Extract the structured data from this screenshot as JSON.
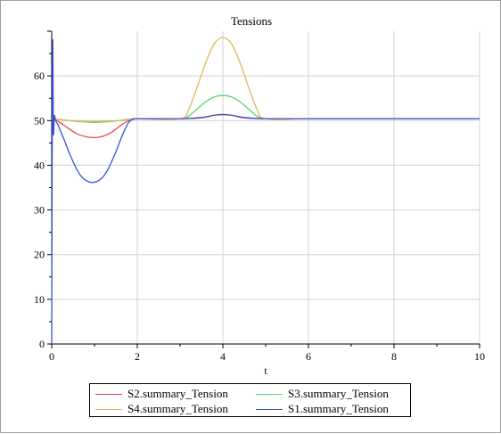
{
  "chart_data": {
    "type": "line",
    "title": "Tensions",
    "xlabel": "t",
    "ylabel": "",
    "xlim": [
      0,
      10
    ],
    "ylim": [
      0,
      70
    ],
    "xticks": [
      0,
      2,
      4,
      6,
      8,
      10
    ],
    "yticks": [
      0,
      10,
      20,
      30,
      40,
      50,
      60
    ],
    "grid": true,
    "legend_position": "bottom",
    "series": [
      {
        "name": "S2.summary_Tension",
        "color": "#e8494b",
        "x": [
          0,
          0.02,
          0.05,
          0.1,
          0.2,
          0.4,
          0.6,
          0.8,
          1.0,
          1.2,
          1.4,
          1.6,
          1.8,
          2.0,
          3.0,
          3.5,
          3.8,
          4.0,
          4.2,
          4.5,
          5.0,
          6,
          8,
          10
        ],
        "y": [
          50.3,
          50.4,
          50.2,
          50.1,
          49.5,
          48.2,
          47.0,
          46.4,
          46.2,
          46.5,
          47.4,
          48.8,
          50.0,
          50.4,
          50.4,
          50.6,
          51.2,
          51.4,
          51.2,
          50.6,
          50.4,
          50.4,
          50.4,
          50.4
        ]
      },
      {
        "name": "S3.summary_Tension",
        "color": "#5fd36a",
        "x": [
          0,
          0.05,
          0.1,
          0.3,
          0.6,
          1.0,
          1.4,
          1.8,
          2.0,
          3.0,
          3.2,
          3.4,
          3.6,
          3.8,
          4.0,
          4.2,
          4.4,
          4.6,
          4.8,
          5.0,
          6,
          8,
          10
        ],
        "y": [
          50.2,
          50.5,
          50.3,
          50.1,
          49.8,
          49.6,
          49.8,
          50.3,
          50.4,
          50.4,
          51.0,
          52.6,
          54.2,
          55.3,
          55.6,
          55.3,
          54.2,
          52.6,
          51.0,
          50.4,
          50.4,
          50.4,
          50.4
        ]
      },
      {
        "name": "S4.summary_Tension",
        "color": "#e0b45a",
        "x": [
          0,
          0.05,
          0.1,
          0.3,
          0.6,
          1.0,
          1.4,
          1.8,
          2.0,
          3.0,
          3.2,
          3.4,
          3.6,
          3.8,
          4.0,
          4.2,
          4.4,
          4.6,
          4.8,
          5.0,
          6,
          8,
          10
        ],
        "y": [
          50.2,
          50.6,
          50.3,
          50.1,
          49.9,
          49.8,
          49.9,
          50.2,
          50.4,
          50.4,
          52.5,
          57.5,
          63.0,
          67.2,
          68.6,
          67.2,
          63.0,
          57.5,
          52.5,
          50.4,
          50.4,
          50.4,
          50.4
        ]
      },
      {
        "name": "S1.summary_Tension",
        "color": "#3d4fd8",
        "x": [
          0,
          0.02,
          0.04,
          0.06,
          0.08,
          0.1,
          0.15,
          0.2,
          0.3,
          0.4,
          0.5,
          0.6,
          0.7,
          0.8,
          0.9,
          1.0,
          1.1,
          1.2,
          1.3,
          1.4,
          1.5,
          1.6,
          1.7,
          1.8,
          1.9,
          2.0,
          3.0,
          3.5,
          3.8,
          4.0,
          4.2,
          4.5,
          5.0,
          6,
          8,
          10
        ],
        "y": [
          0,
          66.5,
          47.5,
          51.0,
          50.5,
          49.8,
          49.0,
          47.8,
          45.5,
          43.0,
          40.8,
          38.8,
          37.4,
          36.6,
          36.2,
          36.2,
          36.6,
          37.4,
          38.8,
          40.8,
          43.0,
          45.5,
          47.8,
          49.6,
          50.3,
          50.4,
          50.4,
          50.7,
          51.2,
          51.3,
          51.2,
          50.7,
          50.4,
          50.4,
          50.4,
          50.4
        ]
      }
    ]
  },
  "legend": {
    "items": [
      {
        "label": "S2.summary_Tension",
        "color": "#e8494b"
      },
      {
        "label": "S3.summary_Tension",
        "color": "#5fd36a"
      },
      {
        "label": "S4.summary_Tension",
        "color": "#e0b45a"
      },
      {
        "label": "S1.summary_Tension",
        "color": "#3d4fd8"
      }
    ]
  }
}
